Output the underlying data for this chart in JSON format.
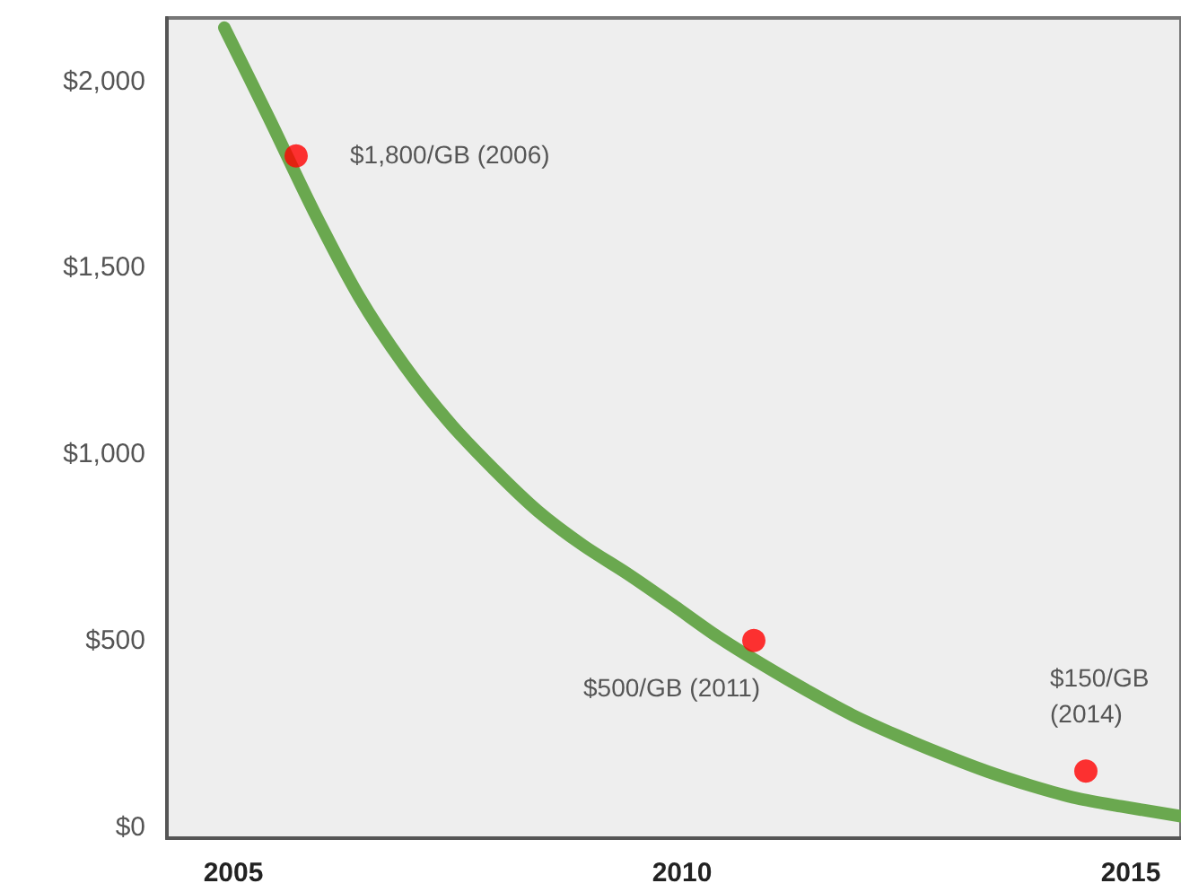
{
  "chart_data": {
    "type": "line",
    "xlim": [
      2004.26,
      2015.56
    ],
    "xticks": [
      2005,
      2010,
      2015
    ],
    "ylim": [
      -30,
      2170
    ],
    "yticks": [
      {
        "value": 0,
        "label": "$0"
      },
      {
        "value": 500,
        "label": "$500"
      },
      {
        "value": 1000,
        "label": "$1,000"
      },
      {
        "value": 1500,
        "label": "$1,500"
      },
      {
        "value": 2000,
        "label": "$2,000"
      }
    ],
    "grid": false,
    "series": [
      {
        "color": "#6aa84f",
        "marker": "none",
        "x": [
          2004.9,
          2005.4,
          2005.9,
          2006.4,
          2006.9,
          2007.4,
          2007.9,
          2008.4,
          2008.9,
          2009.4,
          2009.9,
          2010.4,
          2010.9,
          2011.4,
          2011.9,
          2012.4,
          2012.9,
          2013.4,
          2013.9,
          2014.4,
          2014.9,
          2015.56
        ],
        "values": [
          2144,
          1900,
          1650,
          1423,
          1240,
          1087,
          960,
          846,
          755,
          678,
          595,
          510,
          435,
          365,
          300,
          245,
          195,
          149,
          110,
          77,
          55,
          29
        ]
      },
      {
        "type": "scatter",
        "color": "#ff0000",
        "marker": "circle",
        "x": [
          2005.7,
          2010.8,
          2014.5
        ],
        "values": [
          1800,
          500,
          150
        ]
      }
    ],
    "annotations": [
      {
        "text": "$1,800/GB (2006)",
        "x": 2005.7,
        "y": 1800
      },
      {
        "text": "$500/GB (2011)",
        "x": 2010.8,
        "y": 500
      },
      {
        "text": "$150/GB (2014)",
        "x": 2014.5,
        "y": 150
      }
    ]
  }
}
